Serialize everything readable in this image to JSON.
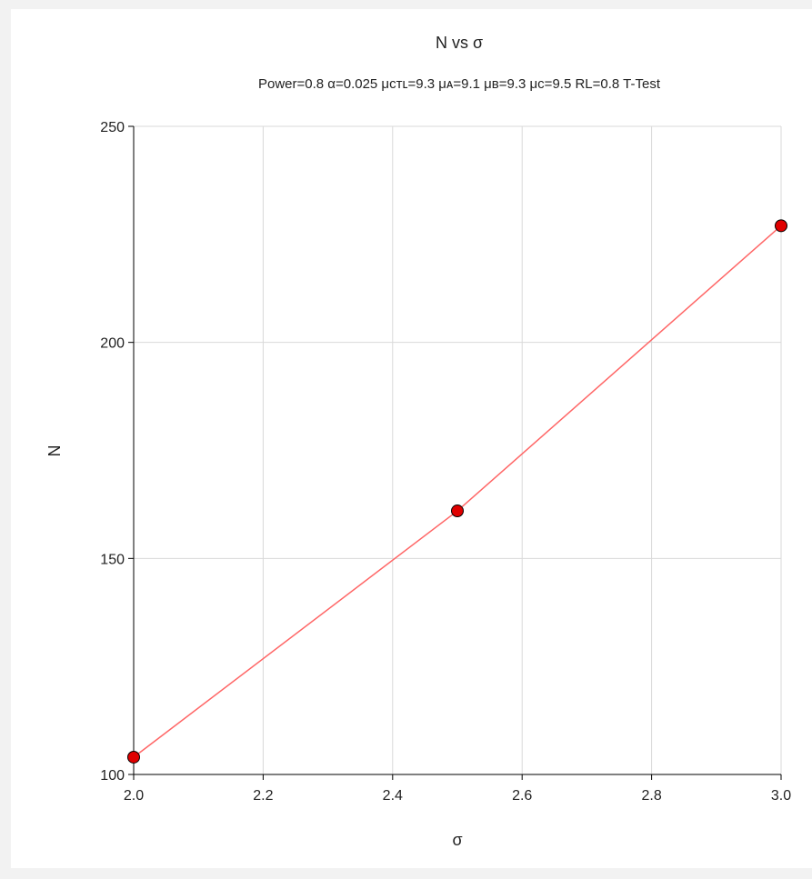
{
  "chart_data": {
    "type": "line",
    "title": "N vs σ",
    "subtitle": "Power=0.8 α=0.025 μᴄᴛʟ=9.3 μᴀ=9.1 μʙ=9.3 μᴄ=9.5 RL=0.8 T-Test",
    "xlabel": "σ",
    "ylabel": "N",
    "xlim": [
      2.0,
      3.0
    ],
    "ylim": [
      100,
      250
    ],
    "xticks": [
      2.0,
      2.2,
      2.4,
      2.6,
      2.8,
      3.0
    ],
    "xtick_labels": [
      "2.0",
      "2.2",
      "2.4",
      "2.6",
      "2.8",
      "3.0"
    ],
    "yticks": [
      100,
      150,
      200,
      250
    ],
    "ytick_labels": [
      "100",
      "150",
      "200",
      "250"
    ],
    "grid": true,
    "series": [
      {
        "x": [
          2.0,
          2.5,
          3.0
        ],
        "y": [
          104,
          161,
          227
        ],
        "line_color": "#ff6666",
        "marker_color": "#e00000"
      }
    ]
  }
}
